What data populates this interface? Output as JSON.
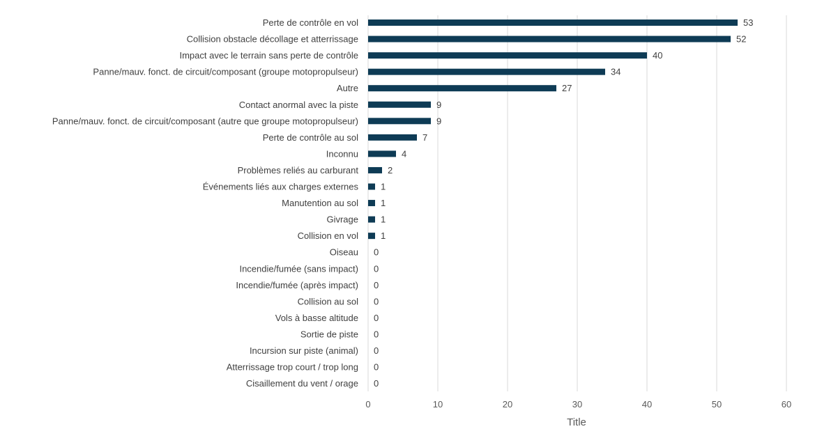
{
  "chart_data": {
    "type": "bar",
    "orientation": "horizontal",
    "categories": [
      "Perte de contrôle en vol",
      "Collision obstacle décollage et atterrissage",
      "Impact avec le terrain sans perte de contrôle",
      "Panne/mauv. fonct. de circuit/composant (groupe motopropulseur)",
      "Autre",
      "Contact anormal avec la piste",
      "Panne/mauv. fonct. de circuit/composant (autre que groupe motopropulseur)",
      "Perte de contrôle au sol",
      "Inconnu",
      "Problèmes reliés au carburant",
      "Événements liés aux charges externes",
      "Manutention au sol",
      "Givrage",
      "Collision en vol",
      "Oiseau",
      "Incendie/fumée (sans impact)",
      "Incendie/fumée (après impact)",
      "Collision au sol",
      "Vols à basse altitude",
      "Sortie de piste",
      "Incursion sur piste (animal)",
      "Atterrissage trop court / trop long",
      "Cisaillement du vent / orage"
    ],
    "values": [
      53,
      52,
      40,
      34,
      27,
      9,
      9,
      7,
      4,
      2,
      1,
      1,
      1,
      1,
      0,
      0,
      0,
      0,
      0,
      0,
      0,
      0,
      0
    ],
    "xlabel": "Title",
    "xlim": [
      0,
      60
    ],
    "xticks": [
      0,
      10,
      20,
      30,
      40,
      50,
      60
    ],
    "data_labels": true,
    "grid": "vertical",
    "bar_color": "#0e3b55",
    "gridline_color": "#d9d9d9"
  }
}
